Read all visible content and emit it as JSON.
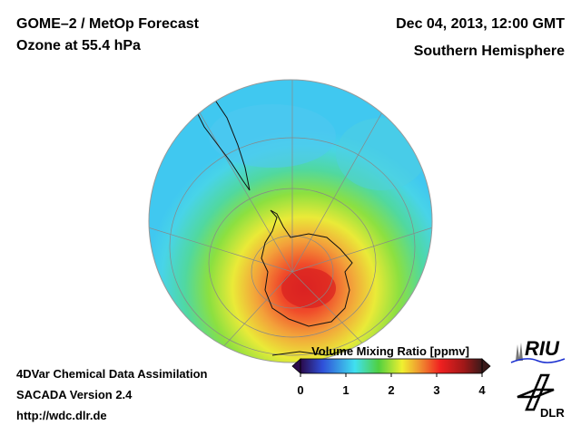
{
  "header": {
    "title_line1": "GOME–2 / MetOp Forecast",
    "title_line2": "Ozone at 55.4 hPa",
    "date": "Dec 04, 2013, 12:00 GMT",
    "region": "Southern Hemisphere"
  },
  "footer": {
    "line1": "4DVar Chemical Data Assimilation",
    "line2": "SACADA Version 2.4",
    "url": "http://wdc.dlr.de"
  },
  "colorbar": {
    "title": "Volume Mixing Ratio [ppmv]",
    "ticks": [
      "0",
      "1",
      "2",
      "3",
      "4"
    ],
    "range": [
      0,
      4
    ],
    "colors": [
      "#2a0a4a",
      "#2f4fd8",
      "#40e0f0",
      "#50d040",
      "#f0f030",
      "#f09030",
      "#f02020",
      "#a01818",
      "#3a1a1a"
    ]
  },
  "logos": {
    "riu": "RIU",
    "dlr": "DLR"
  }
}
